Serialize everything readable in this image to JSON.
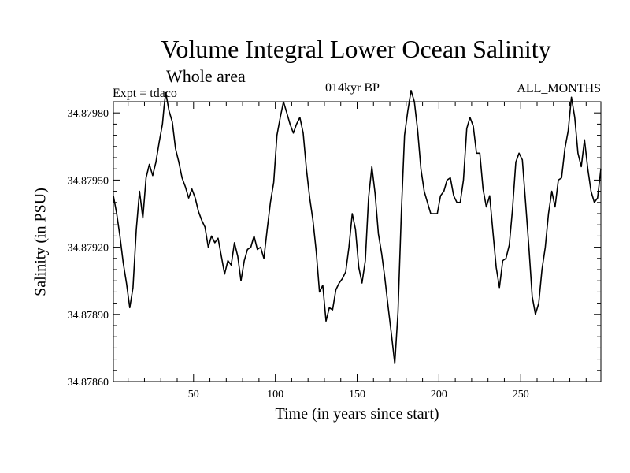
{
  "chart_data": {
    "type": "line",
    "title": "Volume Integral Lower Ocean Salinity",
    "subtitle": "Whole area",
    "experiment": "Expt = tdaco",
    "period": "014kyr BP",
    "months": "ALL_MONTHS",
    "xlabel": "Time (in years since start)",
    "ylabel": "Salinity (in PSU)",
    "xlim": [
      1,
      299
    ],
    "ylim": [
      34.8786,
      34.87985
    ],
    "x_ticks": [
      50,
      100,
      150,
      200,
      250
    ],
    "x_tick_labels": [
      "50",
      "100",
      "150",
      "200",
      "250"
    ],
    "y_ticks": [
      34.8786,
      34.8789,
      34.8792,
      34.8795,
      34.8798
    ],
    "y_tick_labels": [
      "34.87860",
      "34.87890",
      "34.87920",
      "34.87950",
      "34.87980"
    ],
    "grid": false,
    "series": [
      {
        "name": "Salinity",
        "x": [
          1,
          3,
          5,
          7,
          9,
          11,
          13,
          15,
          17,
          19,
          21,
          23,
          25,
          27,
          29,
          31,
          32,
          33,
          35,
          37,
          39,
          41,
          43,
          45,
          47,
          49,
          51,
          53,
          55,
          57,
          59,
          61,
          63,
          65,
          67,
          69,
          71,
          73,
          75,
          77,
          79,
          81,
          83,
          85,
          87,
          89,
          91,
          93,
          95,
          97,
          99,
          101,
          103,
          105,
          107,
          109,
          111,
          113,
          115,
          117,
          119,
          121,
          123,
          125,
          127,
          129,
          131,
          133,
          135,
          137,
          139,
          141,
          143,
          145,
          147,
          149,
          151,
          153,
          155,
          157,
          159,
          161,
          163,
          165,
          167,
          169,
          171,
          173,
          175,
          177,
          179,
          181,
          183,
          185,
          187,
          189,
          191,
          193,
          195,
          197,
          199,
          201,
          203,
          205,
          207,
          209,
          211,
          213,
          215,
          217,
          219,
          221,
          223,
          225,
          227,
          229,
          231,
          233,
          235,
          237,
          239,
          241,
          243,
          245,
          247,
          249,
          251,
          253,
          255,
          257,
          259,
          261,
          263,
          265,
          267,
          269,
          271,
          273,
          275,
          277,
          279,
          281,
          283,
          285,
          287,
          289,
          291,
          293,
          295,
          297,
          299
        ],
        "values": [
          34.87943,
          34.87935,
          34.87925,
          34.87913,
          34.87904,
          34.87893,
          34.87902,
          34.87928,
          34.87945,
          34.87933,
          34.87951,
          34.87957,
          34.87952,
          34.87958,
          34.87967,
          34.87975,
          34.87983,
          34.87989,
          34.87981,
          34.87976,
          34.87964,
          34.87958,
          34.87951,
          34.87947,
          34.87942,
          34.87946,
          34.87942,
          34.87936,
          34.87932,
          34.87929,
          34.8792,
          34.87925,
          34.87922,
          34.87924,
          34.87916,
          34.87908,
          34.87914,
          34.87912,
          34.87922,
          34.87916,
          34.87905,
          34.87914,
          34.87919,
          34.8792,
          34.87925,
          34.87919,
          34.8792,
          34.87915,
          34.87928,
          34.8794,
          34.87949,
          34.8797,
          34.87978,
          34.87985,
          34.8798,
          34.87975,
          34.87971,
          34.87975,
          34.87978,
          34.87971,
          34.87955,
          34.87942,
          34.87932,
          34.87918,
          34.879,
          34.87903,
          34.87887,
          34.87893,
          34.87892,
          34.87901,
          34.87904,
          34.87906,
          34.87909,
          34.8792,
          34.87935,
          34.87928,
          34.87911,
          34.87904,
          34.87914,
          34.87942,
          34.87956,
          34.87944,
          34.87926,
          34.87917,
          34.87906,
          34.87893,
          34.87881,
          34.87868,
          34.87891,
          34.87935,
          34.8797,
          34.87981,
          34.8799,
          34.87985,
          34.87972,
          34.87955,
          34.87945,
          34.8794,
          34.87935,
          34.87935,
          34.87935,
          34.87943,
          34.87945,
          34.8795,
          34.87951,
          34.87943,
          34.8794,
          34.8794,
          34.8795,
          34.87973,
          34.87978,
          34.87974,
          34.87962,
          34.87962,
          34.87946,
          34.87938,
          34.87943,
          34.87927,
          34.87911,
          34.87902,
          34.87914,
          34.87915,
          34.87921,
          34.87937,
          34.87958,
          34.87962,
          34.87959,
          34.8794,
          34.8792,
          34.87898,
          34.8789,
          34.87895,
          34.8791,
          34.8792,
          34.87935,
          34.87945,
          34.87938,
          34.8795,
          34.87951,
          34.87964,
          34.87972,
          34.87987,
          34.87978,
          34.87962,
          34.87956,
          34.87968,
          34.87955,
          34.87945,
          34.8794,
          34.87942,
          34.87955
        ]
      }
    ]
  }
}
